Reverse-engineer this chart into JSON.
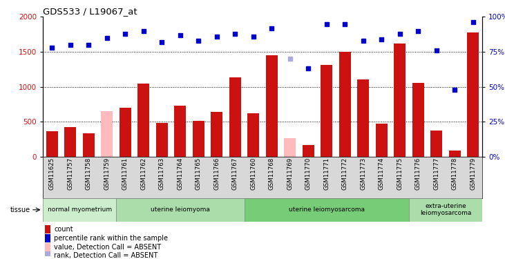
{
  "title": "GDS533 / L19067_at",
  "samples": [
    "GSM11625",
    "GSM11757",
    "GSM11758",
    "GSM11759",
    "GSM11761",
    "GSM11762",
    "GSM11763",
    "GSM11764",
    "GSM11765",
    "GSM11766",
    "GSM11767",
    "GSM11760",
    "GSM11768",
    "GSM11769",
    "GSM11770",
    "GSM11771",
    "GSM11772",
    "GSM11773",
    "GSM11774",
    "GSM11775",
    "GSM11776",
    "GSM11777",
    "GSM11778",
    "GSM11779"
  ],
  "bar_values": [
    360,
    420,
    330,
    650,
    700,
    1050,
    480,
    730,
    510,
    640,
    1130,
    620,
    1450,
    270,
    170,
    1310,
    1500,
    1100,
    470,
    1620,
    1060,
    370,
    90,
    1780
  ],
  "bar_absent": [
    false,
    false,
    false,
    true,
    false,
    false,
    false,
    false,
    false,
    false,
    false,
    false,
    false,
    true,
    false,
    false,
    false,
    false,
    false,
    false,
    false,
    false,
    false,
    false
  ],
  "rank_values": [
    78,
    80,
    80,
    85,
    88,
    90,
    82,
    87,
    83,
    86,
    88,
    86,
    92,
    70,
    63,
    95,
    95,
    83,
    84,
    88,
    90,
    76,
    48,
    96
  ],
  "rank_absent": [
    false,
    false,
    false,
    false,
    false,
    false,
    false,
    false,
    false,
    false,
    false,
    false,
    false,
    true,
    false,
    false,
    false,
    false,
    false,
    false,
    false,
    false,
    false,
    false
  ],
  "bar_color_normal": "#cc1111",
  "bar_color_absent": "#ffbbbb",
  "rank_color_normal": "#0000cc",
  "rank_color_absent": "#aaaadd",
  "ylim_left": [
    0,
    2000
  ],
  "ylim_right": [
    0,
    100
  ],
  "yticks_left": [
    0,
    500,
    1000,
    1500,
    2000
  ],
  "yticks_right": [
    0,
    25,
    50,
    75,
    100
  ],
  "ytick_labels_right": [
    "0%",
    "25%",
    "50%",
    "75%",
    "100%"
  ],
  "groups": [
    {
      "label": "normal myometrium",
      "start": 0,
      "end": 4,
      "color": "#cceecc"
    },
    {
      "label": "uterine leiomyoma",
      "start": 4,
      "end": 11,
      "color": "#aaddaa"
    },
    {
      "label": "uterine leiomyosarcoma",
      "start": 11,
      "end": 20,
      "color": "#77cc77"
    },
    {
      "label": "extra-uterine\nleiomyosarcoma",
      "start": 20,
      "end": 24,
      "color": "#aaddaa"
    }
  ],
  "tissue_label": "tissue",
  "legend_items": [
    {
      "label": "count",
      "color": "#cc1111"
    },
    {
      "label": "percentile rank within the sample",
      "color": "#0000cc"
    },
    {
      "label": "value, Detection Call = ABSENT",
      "color": "#ffbbbb"
    },
    {
      "label": "rank, Detection Call = ABSENT",
      "color": "#aaaadd"
    }
  ]
}
